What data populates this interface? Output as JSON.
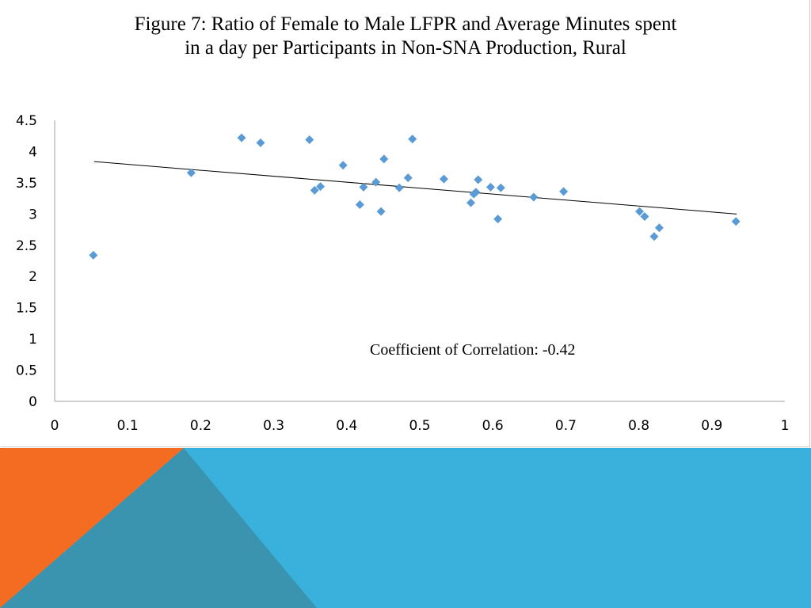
{
  "colors": {
    "orange": "#f36c21",
    "blue": "#3ab0dc",
    "teal_overlap": "#3a94b0",
    "marker": "#5b9bd5",
    "trendline": "#000000",
    "axis": "#a0a0a0"
  },
  "chart_data": {
    "type": "scatter",
    "title_line1": "Figure 7: Ratio of Female to Male LFPR and Average Minutes spent",
    "title_line2": "in a day per Participants in Non-SNA Production, Rural",
    "xlabel": "",
    "ylabel": "",
    "xlim": [
      0,
      1
    ],
    "ylim": [
      0,
      4.5
    ],
    "x_ticks": [
      "0",
      "0.1",
      "0.2",
      "0.3",
      "0.4",
      "0.5",
      "0.6",
      "0.7",
      "0.8",
      "0.9",
      "1"
    ],
    "y_ticks": [
      "0",
      "0.5",
      "1",
      "1.5",
      "2",
      "2.5",
      "3",
      "3.5",
      "4",
      "4.5"
    ],
    "grid": false,
    "marker": "diamond",
    "annotation": "Coefficient of Correlation: -0.42",
    "trendline": {
      "type": "linear",
      "x": [
        0.054,
        0.934
      ],
      "y": [
        3.84,
        3.0
      ]
    },
    "points": [
      {
        "x": 0.053,
        "y": 2.34
      },
      {
        "x": 0.187,
        "y": 3.66
      },
      {
        "x": 0.256,
        "y": 4.22
      },
      {
        "x": 0.282,
        "y": 4.14
      },
      {
        "x": 0.349,
        "y": 4.19
      },
      {
        "x": 0.356,
        "y": 3.38
      },
      {
        "x": 0.364,
        "y": 3.44
      },
      {
        "x": 0.395,
        "y": 3.78
      },
      {
        "x": 0.418,
        "y": 3.15
      },
      {
        "x": 0.423,
        "y": 3.43
      },
      {
        "x": 0.44,
        "y": 3.51
      },
      {
        "x": 0.447,
        "y": 3.04
      },
      {
        "x": 0.451,
        "y": 3.88
      },
      {
        "x": 0.472,
        "y": 3.42
      },
      {
        "x": 0.484,
        "y": 3.58
      },
      {
        "x": 0.49,
        "y": 4.2
      },
      {
        "x": 0.533,
        "y": 3.56
      },
      {
        "x": 0.57,
        "y": 3.18
      },
      {
        "x": 0.574,
        "y": 3.32
      },
      {
        "x": 0.577,
        "y": 3.35
      },
      {
        "x": 0.58,
        "y": 3.55
      },
      {
        "x": 0.597,
        "y": 3.43
      },
      {
        "x": 0.607,
        "y": 2.92
      },
      {
        "x": 0.611,
        "y": 3.42
      },
      {
        "x": 0.656,
        "y": 3.27
      },
      {
        "x": 0.697,
        "y": 3.36
      },
      {
        "x": 0.801,
        "y": 3.04
      },
      {
        "x": 0.808,
        "y": 2.96
      },
      {
        "x": 0.821,
        "y": 2.64
      },
      {
        "x": 0.828,
        "y": 2.78
      },
      {
        "x": 0.933,
        "y": 2.88
      }
    ]
  }
}
